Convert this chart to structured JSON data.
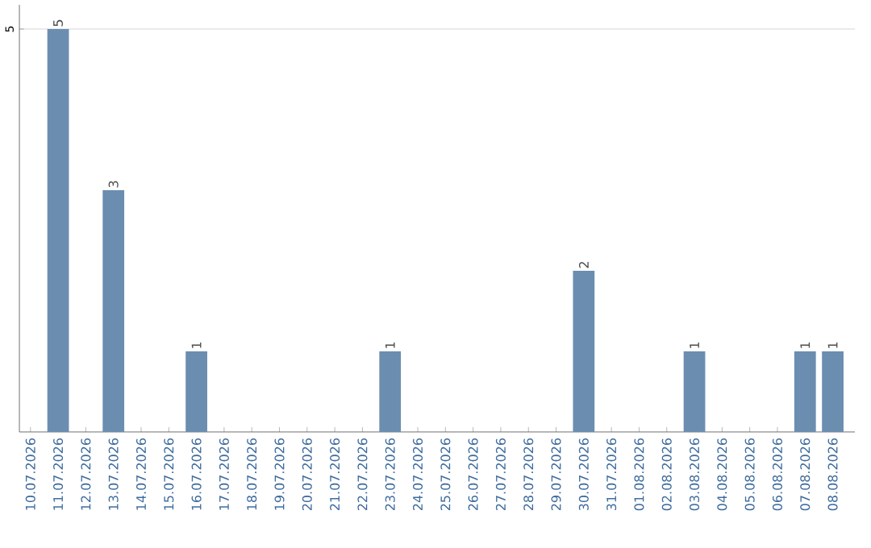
{
  "chart_data": {
    "type": "bar",
    "categories": [
      "10.07.2026",
      "11.07.2026",
      "12.07.2026",
      "13.07.2026",
      "14.07.2026",
      "15.07.2026",
      "16.07.2026",
      "17.07.2026",
      "18.07.2026",
      "19.07.2026",
      "20.07.2026",
      "21.07.2026",
      "22.07.2026",
      "23.07.2026",
      "24.07.2026",
      "25.07.2026",
      "26.07.2026",
      "27.07.2026",
      "28.07.2026",
      "29.07.2026",
      "30.07.2026",
      "31.07.2026",
      "01.08.2026",
      "02.08.2026",
      "03.08.2026",
      "04.08.2026",
      "05.08.2026",
      "06.08.2026",
      "07.08.2026",
      "08.08.2026"
    ],
    "values": [
      0,
      5,
      0,
      3,
      0,
      0,
      1,
      0,
      0,
      0,
      0,
      0,
      0,
      1,
      0,
      0,
      0,
      0,
      0,
      0,
      2,
      0,
      0,
      0,
      1,
      0,
      0,
      0,
      1,
      1
    ],
    "value_labels": [
      null,
      "5",
      null,
      "3",
      null,
      null,
      "1",
      null,
      null,
      null,
      null,
      null,
      null,
      "1",
      null,
      null,
      null,
      null,
      null,
      null,
      "2",
      null,
      null,
      null,
      "1",
      null,
      null,
      null,
      "1",
      "1"
    ],
    "color": "#6b8db0",
    "ylim": [
      0,
      5.3
    ],
    "yticks": [
      5
    ],
    "grid": "y"
  }
}
